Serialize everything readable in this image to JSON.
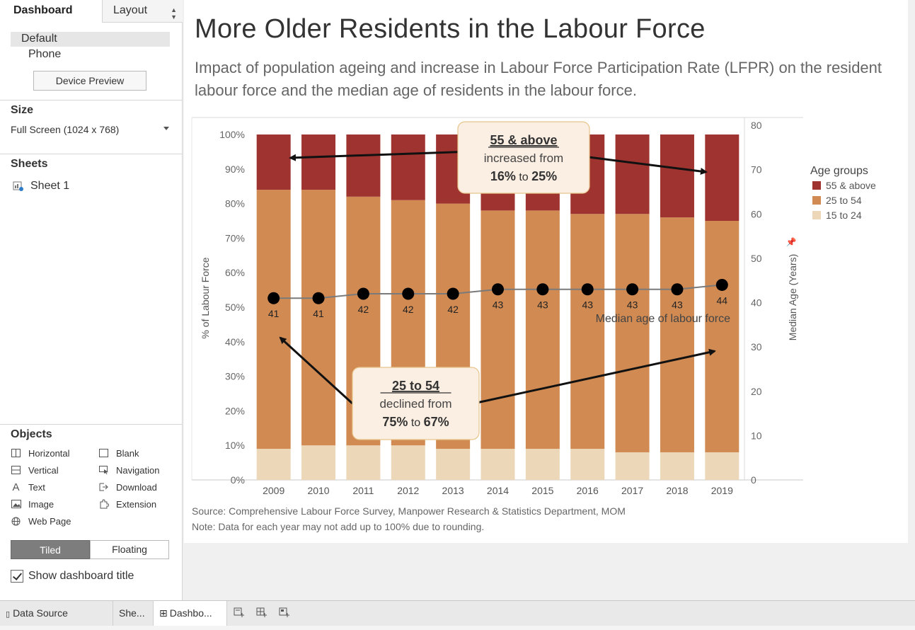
{
  "left_panel": {
    "tabs": {
      "dashboard": "Dashboard",
      "layout": "Layout"
    },
    "devices": {
      "default": "Default",
      "phone": "Phone",
      "preview_button": "Device Preview"
    },
    "size": {
      "label": "Size",
      "value": "Full Screen (1024 x 768)"
    },
    "sheets": {
      "label": "Sheets",
      "items": [
        "Sheet 1"
      ]
    },
    "objects": {
      "label": "Objects",
      "items": [
        {
          "label": "Horizontal",
          "icon": "horizontal-container-icon"
        },
        {
          "label": "Blank",
          "icon": "blank-icon"
        },
        {
          "label": "Vertical",
          "icon": "vertical-container-icon"
        },
        {
          "label": "Navigation",
          "icon": "navigation-icon"
        },
        {
          "label": "Text",
          "icon": "text-icon"
        },
        {
          "label": "Download",
          "icon": "download-icon"
        },
        {
          "label": "Image",
          "icon": "image-icon"
        },
        {
          "label": "Extension",
          "icon": "extension-icon"
        },
        {
          "label": "Web Page",
          "icon": "web-page-icon"
        }
      ]
    },
    "mode": {
      "tiled": "Tiled",
      "floating": "Floating",
      "selected": "Tiled"
    },
    "show_title": {
      "label": "Show dashboard title",
      "checked": true
    }
  },
  "dashboard": {
    "title": "More Older Residents in the Labour Force",
    "subtitle": "Impact of population ageing and increase in Labour Force Participation Rate (LFPR) on the resident labour force and the median age of residents in the labour force.",
    "source": "Source: Comprehensive Labour Force Survey, Manpower Research & Statistics Department, MOM",
    "note": "Note: Data for each year may not add up to 100% due to rounding."
  },
  "chart_data": {
    "type": "bar",
    "stacked": true,
    "categories": [
      "2009",
      "2010",
      "2011",
      "2012",
      "2013",
      "2014",
      "2015",
      "2016",
      "2017",
      "2018",
      "2019"
    ],
    "series": [
      {
        "name": "15 to 24",
        "color": "#ecd8b8",
        "values": [
          9,
          10,
          10,
          10,
          9,
          9,
          9,
          9,
          8,
          8,
          8
        ]
      },
      {
        "name": "25 to 54",
        "color": "#d08a52",
        "values": [
          75,
          74,
          72,
          71,
          71,
          69,
          69,
          68,
          69,
          68,
          67
        ]
      },
      {
        "name": "55 & above",
        "color": "#9e3330",
        "values": [
          16,
          16,
          18,
          19,
          20,
          22,
          22,
          23,
          23,
          24,
          25
        ]
      }
    ],
    "line": {
      "name": "Median age of labour force",
      "values": [
        41,
        41,
        42,
        42,
        42,
        43,
        43,
        43,
        43,
        43,
        44
      ],
      "color": "#7a7a7a"
    },
    "y_left": {
      "label": "% of Labour Force",
      "ticks": [
        "0%",
        "10%",
        "20%",
        "30%",
        "40%",
        "50%",
        "60%",
        "70%",
        "80%",
        "90%",
        "100%"
      ],
      "range": [
        0,
        100
      ]
    },
    "y_right": {
      "label": "Median Age (Years)",
      "ticks": [
        "0",
        "10",
        "20",
        "30",
        "40",
        "50",
        "60",
        "70",
        "80"
      ],
      "range": [
        0,
        80
      ]
    },
    "legend": {
      "title": "Age groups",
      "position": "right",
      "items": [
        "55 & above",
        "25 to 54",
        "15 to 24"
      ]
    },
    "annotations": [
      {
        "heading": "55 & above",
        "line2": "increased from",
        "from": "16%",
        "to_word": "to",
        "to": "25%"
      },
      {
        "heading": "25 to 54",
        "line2": "declined from",
        "from": "75%",
        "to_word": "to",
        "to": "67%"
      }
    ]
  },
  "bottom_tabs": [
    {
      "label": "Data Source",
      "icon": "data-source-icon"
    },
    {
      "label": "She...",
      "icon": "sheet-icon"
    },
    {
      "label": "Dashbo...",
      "icon": "dashboard-icon"
    }
  ],
  "bottom_actions": [
    "new-worksheet-icon",
    "new-dashboard-icon",
    "new-story-icon"
  ]
}
